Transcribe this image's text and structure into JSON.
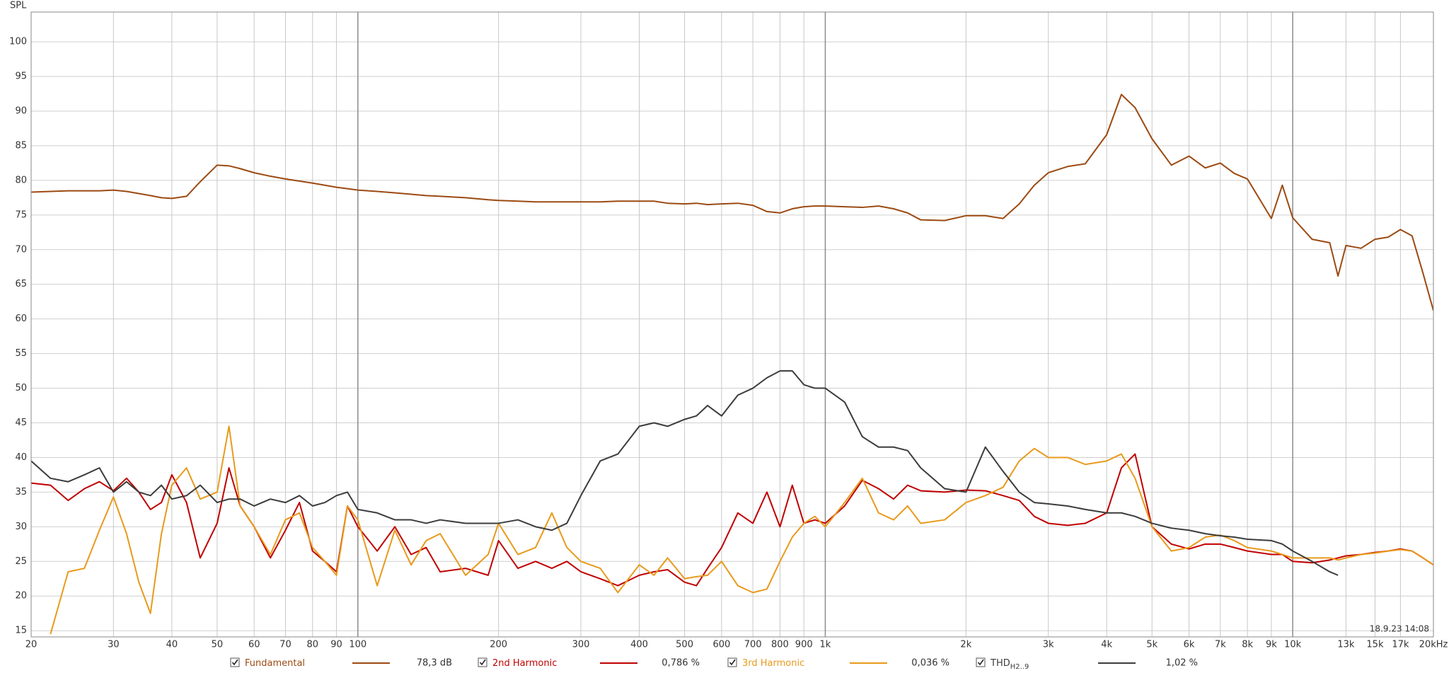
{
  "chart_data": {
    "type": "line",
    "y_label": "SPL",
    "timestamp": "18.9.23 14:08",
    "log_x": true,
    "grid": true,
    "xlim": [
      20,
      20000
    ],
    "ylim": [
      14.1,
      104.3
    ],
    "xticks": [
      20,
      30,
      40,
      50,
      60,
      70,
      80,
      90,
      100,
      200,
      300,
      400,
      500,
      600,
      700,
      800,
      900,
      {
        "value": 1000,
        "label": "1k"
      },
      {
        "value": 2000,
        "label": "2k"
      },
      {
        "value": 3000,
        "label": "3k"
      },
      {
        "value": 4000,
        "label": "4k"
      },
      {
        "value": 5000,
        "label": "5k"
      },
      {
        "value": 6000,
        "label": "6k"
      },
      {
        "value": 7000,
        "label": "7k"
      },
      {
        "value": 8000,
        "label": "8k"
      },
      {
        "value": 9000,
        "label": "9k"
      },
      {
        "value": 10000,
        "label": "10k"
      },
      {
        "value": 13000,
        "label": "13k"
      },
      {
        "value": 15000,
        "label": "15k"
      },
      {
        "value": 17000,
        "label": "17k"
      },
      {
        "value": 20000,
        "label": "20kHz"
      }
    ],
    "yticks": [
      15,
      20,
      25,
      30,
      35,
      40,
      45,
      50,
      55,
      60,
      65,
      70,
      75,
      80,
      85,
      90,
      95,
      100
    ],
    "x": [
      20,
      22,
      24,
      26,
      28,
      30,
      32,
      34,
      36,
      38,
      40,
      43,
      46,
      50,
      53,
      56,
      60,
      65,
      70,
      75,
      80,
      85,
      90,
      95,
      100,
      110,
      120,
      130,
      140,
      150,
      170,
      190,
      200,
      220,
      240,
      260,
      280,
      300,
      330,
      360,
      400,
      430,
      460,
      500,
      530,
      560,
      600,
      650,
      700,
      750,
      800,
      850,
      900,
      950,
      1000,
      1100,
      1200,
      1300,
      1400,
      1500,
      1600,
      1800,
      2000,
      2200,
      2400,
      2600,
      2800,
      3000,
      3300,
      3600,
      4000,
      4300,
      4600,
      5000,
      5500,
      6000,
      6500,
      7000,
      7500,
      8000,
      9000,
      9500,
      10000,
      11000,
      12000,
      12500,
      13000,
      14000,
      15000,
      16000,
      17000,
      18000,
      19000,
      20000
    ],
    "series": [
      {
        "name": "Fundamental",
        "readout": "78,3 dB",
        "color": "#9c4a12",
        "values": [
          78.3,
          78.4,
          78.5,
          78.5,
          78.5,
          78.6,
          78.4,
          78.1,
          77.8,
          77.5,
          77.4,
          77.7,
          79.8,
          82.2,
          82.1,
          81.7,
          81.1,
          80.6,
          80.2,
          79.9,
          79.6,
          79.3,
          79.0,
          78.8,
          78.6,
          78.4,
          78.2,
          78.0,
          77.8,
          77.7,
          77.5,
          77.2,
          77.1,
          77.0,
          76.9,
          76.9,
          76.9,
          76.9,
          76.9,
          77.0,
          77.0,
          77.0,
          76.7,
          76.6,
          76.7,
          76.5,
          76.6,
          76.7,
          76.4,
          75.5,
          75.3,
          75.9,
          76.2,
          76.3,
          76.3,
          76.2,
          76.1,
          76.3,
          75.9,
          75.3,
          74.3,
          74.2,
          74.9,
          74.9,
          74.5,
          76.6,
          79.3,
          81.1,
          82.0,
          82.4,
          86.6,
          92.4,
          90.5,
          86.0,
          82.2,
          83.5,
          81.8,
          82.5,
          81.0,
          80.2,
          74.5,
          79.3,
          74.6,
          71.5,
          71.0,
          66.2,
          70.6,
          70.2,
          71.5,
          71.8,
          72.9,
          72.0,
          66.6,
          61.2
        ]
      },
      {
        "name": "2nd Harmonic",
        "readout": "0,786 %",
        "color": "#c00000",
        "values": [
          36.3,
          36,
          33.8,
          35.5,
          36.5,
          35.2,
          37,
          35,
          32.5,
          33.5,
          37.5,
          33.5,
          25.5,
          30.5,
          38.5,
          33,
          30,
          25.5,
          29.5,
          33.5,
          26.5,
          25,
          23.5,
          33,
          30,
          26.5,
          30,
          26,
          27,
          23.5,
          24,
          23,
          28,
          24,
          25,
          24,
          25,
          23.5,
          22.5,
          21.5,
          23,
          23.5,
          23.8,
          22,
          21.5,
          24,
          27,
          32,
          30.5,
          35,
          30,
          36,
          30.5,
          31,
          30.5,
          33,
          36.7,
          35.5,
          34,
          36,
          35.2,
          35,
          35.3,
          35.2,
          34.5,
          33.8,
          31.5,
          30.5,
          30.2,
          30.5,
          32,
          38.5,
          40.5,
          30,
          27.5,
          26.8,
          27.5,
          27.5,
          27,
          26.5,
          26,
          26,
          25,
          24.8,
          25.2,
          25.5,
          25.8,
          26,
          26.3,
          26.5,
          26.8,
          26.5,
          25.5,
          24.5
        ]
      },
      {
        "name": "3rd Harmonic",
        "readout": "0,036 %",
        "color": "#e89a1c",
        "values": [
          null,
          14.5,
          23.5,
          24,
          29.5,
          34.3,
          29,
          22,
          17.5,
          29,
          36,
          38.5,
          34,
          35,
          44.5,
          33,
          30,
          26,
          31,
          32,
          27,
          25,
          23,
          33,
          31,
          21.5,
          29.5,
          24.5,
          28,
          29,
          23,
          26,
          30.5,
          26,
          27,
          32,
          27,
          25,
          24,
          20.5,
          24.5,
          23,
          25.5,
          22.5,
          22.8,
          23,
          25,
          21.5,
          20.5,
          21,
          25,
          28.5,
          30.5,
          31.5,
          30,
          33.5,
          37,
          32,
          31,
          33,
          30.5,
          31,
          33.5,
          34.5,
          35.7,
          39.5,
          41.3,
          40,
          40,
          39,
          39.5,
          40.5,
          37,
          30,
          26.5,
          27,
          28.5,
          28.8,
          28,
          27,
          26.5,
          26,
          25.5,
          25.5,
          25.5,
          25.2,
          25.5,
          26,
          26.2,
          26.5,
          26.7,
          26.5,
          25.5,
          24.5
        ]
      },
      {
        "name": "THD",
        "subscript": "H2..9",
        "readout": "1,02 %",
        "color": "#3c3c3c",
        "values": [
          39.5,
          37,
          36.5,
          37.5,
          38.5,
          35,
          36.5,
          35,
          34.5,
          36,
          34,
          34.5,
          36,
          33.5,
          34,
          34,
          33,
          34,
          33.5,
          34.5,
          33,
          33.5,
          34.5,
          35,
          32.5,
          32,
          31,
          31,
          30.5,
          31,
          30.5,
          30.5,
          30.5,
          31,
          30,
          29.5,
          30.5,
          34.5,
          39.5,
          40.5,
          44.5,
          45,
          44.5,
          45.5,
          46,
          47.5,
          46,
          49,
          50,
          51.5,
          52.5,
          52.5,
          50.5,
          50,
          50,
          48,
          43,
          41.5,
          41.5,
          41,
          38.5,
          35.5,
          35,
          41.5,
          38,
          35,
          33.5,
          33.3,
          33,
          32.5,
          32,
          32,
          31.5,
          30.5,
          29.8,
          29.5,
          29,
          28.7,
          28.5,
          28.2,
          28,
          27.5,
          26.5,
          25,
          23.5,
          23,
          null,
          null,
          null,
          null,
          null,
          null,
          null,
          null
        ]
      }
    ]
  }
}
